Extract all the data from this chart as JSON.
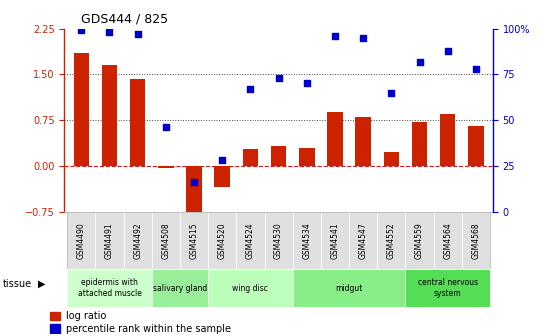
{
  "title": "GDS444 / 825",
  "categories": [
    "GSM4490",
    "GSM4491",
    "GSM4492",
    "GSM4508",
    "GSM4515",
    "GSM4520",
    "GSM4524",
    "GSM4530",
    "GSM4534",
    "GSM4541",
    "GSM4547",
    "GSM4552",
    "GSM4559",
    "GSM4564",
    "GSM4568"
  ],
  "log_ratio": [
    1.85,
    1.65,
    1.43,
    -0.04,
    -0.95,
    -0.35,
    0.28,
    0.32,
    0.3,
    0.88,
    0.8,
    0.22,
    0.72,
    0.85,
    0.65
  ],
  "percentile": [
    99,
    98,
    97,
    46,
    16,
    28,
    67,
    73,
    70,
    96,
    95,
    65,
    82,
    88,
    78
  ],
  "bar_color": "#cc2200",
  "dot_color": "#0000cc",
  "ylim_left": [
    -0.75,
    2.25
  ],
  "ylim_right": [
    0,
    100
  ],
  "yticks_left": [
    -0.75,
    0,
    0.75,
    1.5,
    2.25
  ],
  "yticks_right": [
    0,
    25,
    50,
    75,
    100
  ],
  "tissue_groups": [
    {
      "label": "epidermis with\nattached muscle",
      "start": 0,
      "end": 3,
      "color": "#ccffcc"
    },
    {
      "label": "salivary gland",
      "start": 3,
      "end": 5,
      "color": "#99ee99"
    },
    {
      "label": "wing disc",
      "start": 5,
      "end": 8,
      "color": "#bbffbb"
    },
    {
      "label": "midgut",
      "start": 8,
      "end": 12,
      "color": "#88ee88"
    },
    {
      "label": "central nervous\nsystem",
      "start": 12,
      "end": 15,
      "color": "#55dd55"
    }
  ],
  "background_color": "#ffffff",
  "zero_line_color": "#cc0000",
  "dotted_line_color": "#444444"
}
